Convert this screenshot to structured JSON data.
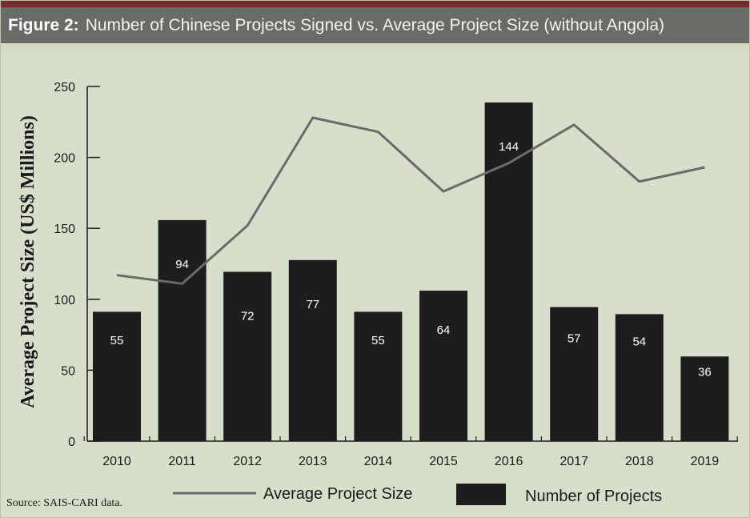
{
  "header": {
    "figure_label": "Figure 2:",
    "figure_title": "Number of Chinese Projects Signed vs. Average Project Size (without Angola)"
  },
  "source": "Source: SAIS-CARI data.",
  "colors": {
    "header_bg": "#6a6a66",
    "accent_rule": "#7a2b2b",
    "plot_bg": "#d7dfcc",
    "bar": "#1e1c1c",
    "line": "#6b6b68"
  },
  "chart_data": {
    "type": "bar",
    "title": "Number of Chinese Projects Signed vs. Average Project Size (without Angola)",
    "ylabel": "Average Project Size (US$ Millions)",
    "xlabel": "",
    "ylim": [
      0,
      250
    ],
    "yticks": [
      0,
      50,
      100,
      150,
      200,
      250
    ],
    "categories": [
      "2010",
      "2011",
      "2012",
      "2013",
      "2014",
      "2015",
      "2016",
      "2017",
      "2018",
      "2019"
    ],
    "legend_position": "bottom",
    "series": [
      {
        "name": "Average Project Size",
        "type": "line",
        "values": [
          117,
          111,
          152,
          228,
          218,
          176,
          196,
          223,
          183,
          193
        ]
      },
      {
        "name": "Number of Projects",
        "type": "bar",
        "values": [
          55,
          94,
          72,
          77,
          55,
          64,
          144,
          57,
          54,
          36
        ],
        "labels": [
          "55",
          "94",
          "72",
          "77",
          "55",
          "64",
          "144",
          "57",
          "54",
          "36"
        ]
      }
    ]
  }
}
